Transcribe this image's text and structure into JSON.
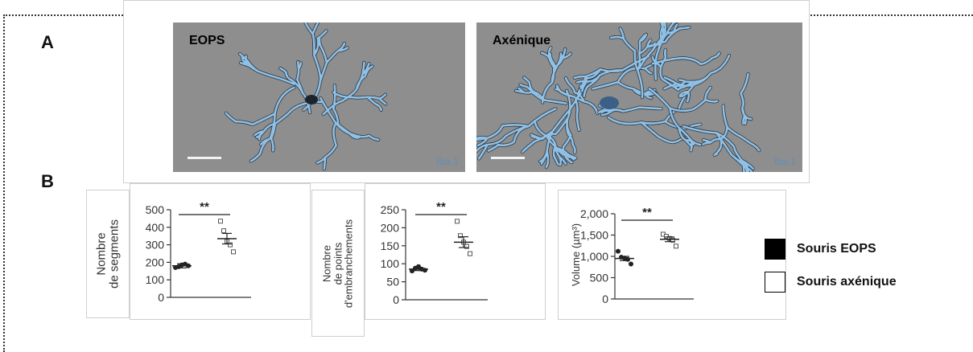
{
  "panels": {
    "a_label": "A",
    "b_label": "B"
  },
  "micrographs": [
    {
      "title": "EOPS",
      "stain": "Iba-1"
    },
    {
      "title": "Axénique",
      "stain": "Iba-1"
    }
  ],
  "chart_data": [
    {
      "type": "scatter",
      "ylabel_lines": [
        "Nombre",
        "de segments"
      ],
      "ylim": [
        0,
        500
      ],
      "yticks": [
        0,
        100,
        200,
        300,
        400,
        500
      ],
      "ytick_labels": [
        "0",
        "100",
        "200",
        "300",
        "400",
        "500"
      ],
      "significance": "**",
      "series": [
        {
          "name": "Souris EOPS",
          "mean": 180,
          "sem": 12,
          "points": [
            170,
            175,
            185,
            190,
            180
          ]
        },
        {
          "name": "Souris axénique",
          "mean": 335,
          "sem": 30,
          "points": [
            435,
            380,
            320,
            300,
            260
          ]
        }
      ]
    },
    {
      "type": "scatter",
      "ylabel_lines": [
        "Nombre",
        "de points",
        "d'embranchements"
      ],
      "ylim": [
        0,
        250
      ],
      "yticks": [
        0,
        50,
        100,
        150,
        200,
        250
      ],
      "ytick_labels": [
        "0",
        "50",
        "100",
        "150",
        "200",
        "250"
      ],
      "significance": "**",
      "series": [
        {
          "name": "Souris EOPS",
          "mean": 85,
          "sem": 4,
          "points": [
            80,
            88,
            92,
            85,
            82
          ]
        },
        {
          "name": "Souris axénique",
          "mean": 160,
          "sem": 15,
          "points": [
            218,
            178,
            160,
            148,
            128
          ]
        }
      ]
    },
    {
      "type": "scatter",
      "ylabel_lines": [
        "Volume (µm³)"
      ],
      "ylim": [
        0,
        2000
      ],
      "yticks": [
        0,
        500,
        1000,
        1500,
        2000
      ],
      "ytick_labels": [
        "0",
        "500",
        "1,000",
        "1,500",
        "2,000"
      ],
      "significance": "**",
      "series": [
        {
          "name": "Souris EOPS",
          "mean": 950,
          "sem": 50,
          "points": [
            1120,
            980,
            960,
            930,
            820
          ]
        },
        {
          "name": "Souris axénique",
          "mean": 1400,
          "sem": 55,
          "points": [
            1520,
            1470,
            1420,
            1380,
            1240
          ]
        }
      ]
    }
  ],
  "legend": [
    {
      "label": "Souris EOPS",
      "fill": "#000000"
    },
    {
      "label": "Souris axénique",
      "fill": "#ffffff"
    }
  ],
  "colors": {
    "micro_bg": "#8e8e8e",
    "cell": "#8fc1e6",
    "cell_shadow": "#2b3440"
  }
}
